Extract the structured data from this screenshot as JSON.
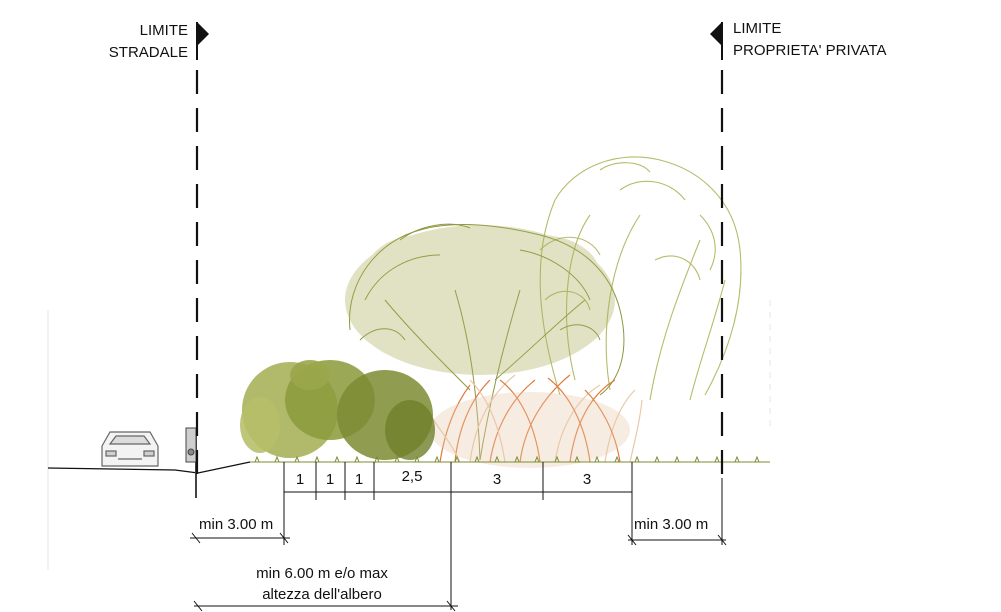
{
  "labels": {
    "limit_road_line1": "LIMITE",
    "limit_road_line2": "STRADALE",
    "limit_private_line1": "LIMITE",
    "limit_private_line2": "PROPRIETA' PRIVATA"
  },
  "dimensions": {
    "segments": [
      "1",
      "1",
      "1",
      "2,5",
      "3",
      "3"
    ],
    "min_road_offset": "min 3.00 m",
    "min_private_offset": "min 3.00 m",
    "tree_distance_line1": "min 6.00 m e/o max",
    "tree_distance_line2": "altezza dell'albero"
  },
  "colors": {
    "line": "#111111",
    "shrub_green": "#8a9a3a",
    "shrub_light": "#a9b35a",
    "tree_outline": "#8e9640",
    "tree_light": "#b3b766",
    "grass_orange": "#e07a3c",
    "grass_pale": "#e8c9a8"
  }
}
